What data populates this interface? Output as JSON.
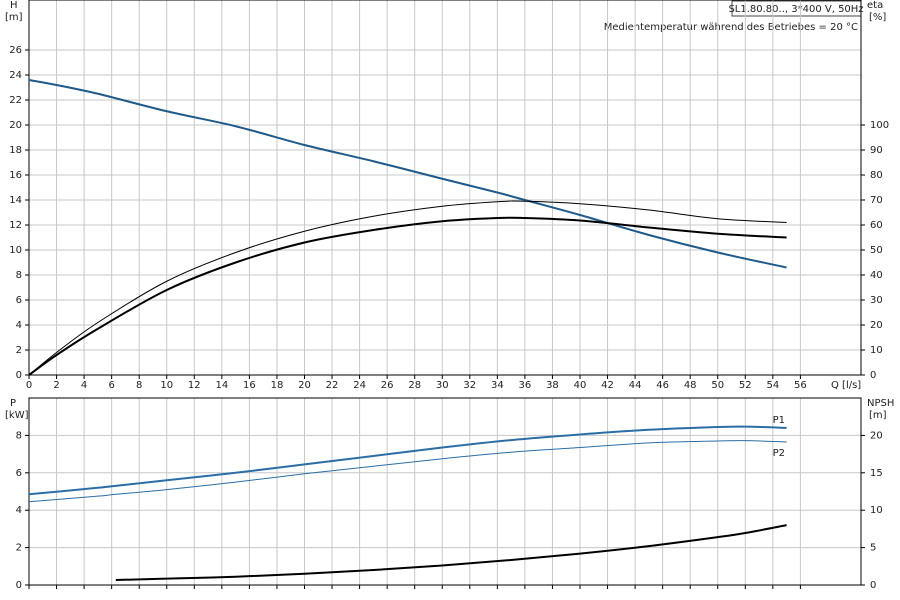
{
  "header": {
    "pump": "SL1.80.80.., 3*400 V, 50Hz",
    "note": "Medientemperatur während des Betriebes = 20 °C"
  },
  "chart_data": [
    {
      "type": "line",
      "ylabel": "H",
      "yunit": "[m]",
      "y2label": "eta",
      "y2unit": "[%]",
      "xlabel": "Q [l/s]",
      "x": [
        0,
        2,
        5,
        10,
        15,
        20,
        25,
        30,
        34,
        36,
        40,
        45,
        50,
        55
      ],
      "xlim": [
        0,
        60.4
      ],
      "xticks": [
        0,
        2,
        4,
        6,
        8,
        10,
        12,
        14,
        16,
        18,
        20,
        22,
        24,
        26,
        28,
        30,
        32,
        34,
        36,
        38,
        40,
        42,
        44,
        46,
        48,
        50,
        52,
        54,
        56
      ],
      "ylim": [
        0,
        30
      ],
      "yticks": [
        0,
        2,
        4,
        6,
        8,
        10,
        12,
        14,
        16,
        18,
        20,
        22,
        24,
        26
      ],
      "y2lim": [
        0,
        150
      ],
      "y2ticks": [
        0,
        10,
        20,
        30,
        40,
        50,
        60,
        70,
        80,
        90,
        100
      ],
      "grid": true,
      "series": [
        {
          "color": "#1f5a8a",
          "line_width": 2,
          "values": [
            23.6,
            23.2,
            22.5,
            21.1,
            19.9,
            18.4,
            17.1,
            15.7,
            14.6,
            14.0,
            12.8,
            11.2,
            9.8,
            8.6
          ]
        },
        {
          "color": "#000000",
          "line_width": 2,
          "axis": "y2",
          "values": [
            0,
            8,
            18.5,
            34,
            45,
            53,
            58,
            61.5,
            62.8,
            62.8,
            61.8,
            59,
            56.5,
            55
          ]
        },
        {
          "color": "#000000",
          "line_width": 1,
          "axis": "y2",
          "values": [
            0,
            9,
            21,
            37.5,
            49,
            57.5,
            63.5,
            67.5,
            69.3,
            69.5,
            68.5,
            66,
            62.5,
            61
          ]
        }
      ]
    },
    {
      "type": "line",
      "ylabel": "P",
      "yunit": "[kW]",
      "y2label": "NPSH",
      "y2unit": "[m]",
      "x": [
        0,
        5,
        6.3,
        10,
        15,
        20,
        25,
        30,
        35,
        40,
        45,
        50,
        52,
        55
      ],
      "xlim": [
        0,
        60.4
      ],
      "xticks": [
        0,
        2,
        4,
        6,
        8,
        10,
        12,
        14,
        16,
        18,
        20,
        22,
        24,
        26,
        28,
        30,
        32,
        34,
        36,
        38,
        40,
        42,
        44,
        46,
        48,
        50,
        52,
        54,
        56
      ],
      "ylim": [
        0,
        10
      ],
      "yticks": [
        0,
        2,
        4,
        6,
        8
      ],
      "y2lim": [
        0,
        25
      ],
      "y2ticks": [
        0,
        5,
        10,
        15,
        20
      ],
      "grid": true,
      "series": [
        {
          "name": "P1",
          "color": "#2b6ea6",
          "line_width": 2,
          "values": [
            4.85,
            5.2,
            5.3,
            5.6,
            6.0,
            6.45,
            6.9,
            7.35,
            7.75,
            8.05,
            8.3,
            8.45,
            8.47,
            8.4
          ]
        },
        {
          "name": "P2",
          "color": "#2b6ea6",
          "line_width": 1,
          "values": [
            4.45,
            4.75,
            4.85,
            5.1,
            5.5,
            5.95,
            6.35,
            6.75,
            7.1,
            7.35,
            7.6,
            7.7,
            7.72,
            7.65
          ]
        },
        {
          "color": "#000000",
          "line_width": 2,
          "axis": "y2",
          "values": [
            null,
            null,
            0.67,
            0.85,
            1.1,
            1.5,
            2.0,
            2.6,
            3.35,
            4.2,
            5.2,
            6.4,
            6.95,
            8.0
          ]
        }
      ]
    }
  ]
}
